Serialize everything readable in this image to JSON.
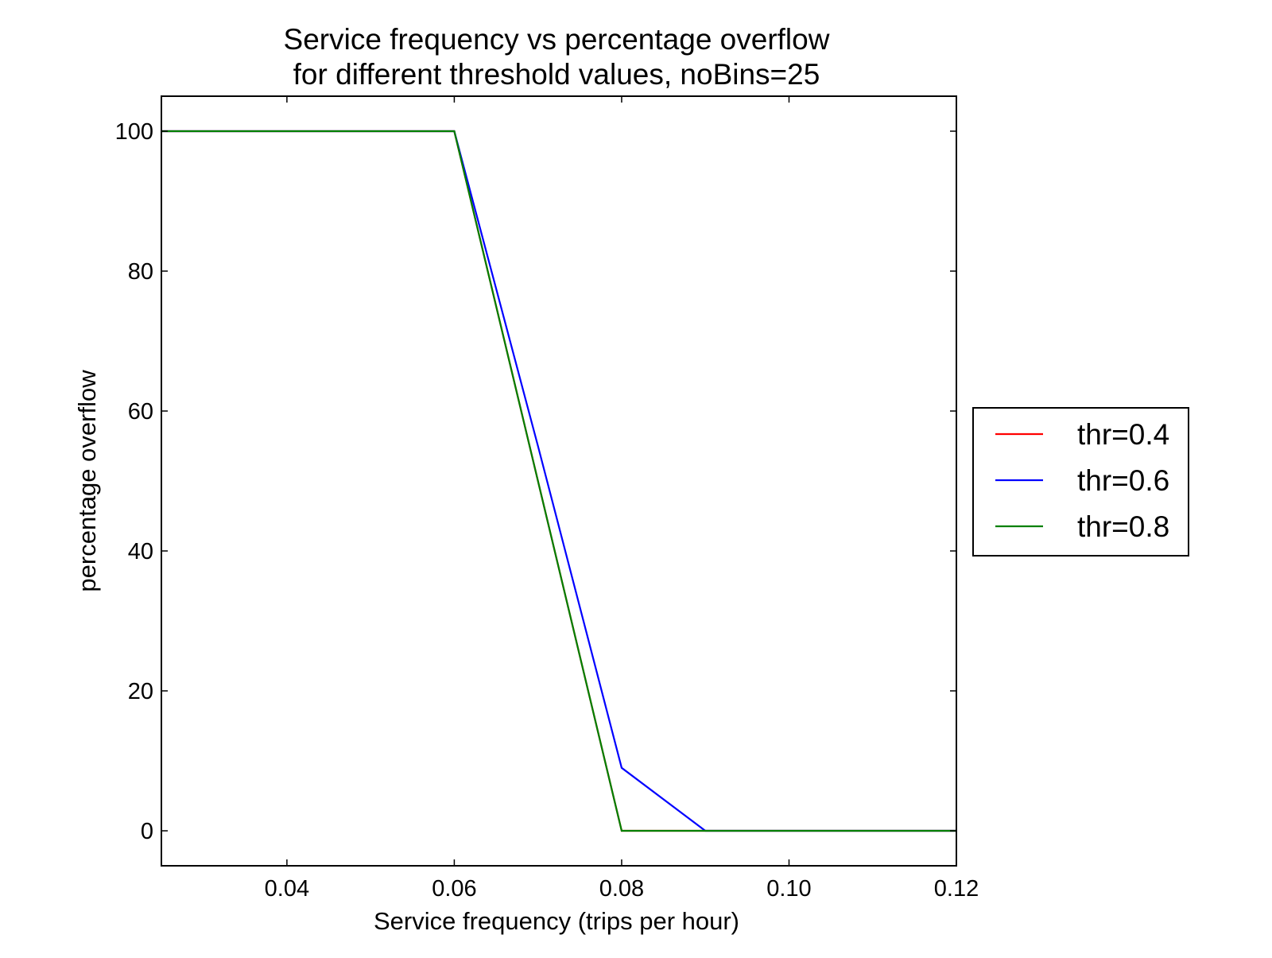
{
  "chart_data": {
    "type": "line",
    "title": "Service frequency vs percentage overflow",
    "subtitle": "for different threshold values, noBins=25",
    "xlabel": "Service frequency (trips per hour)",
    "ylabel": "percentage overflow",
    "xlim": [
      0.025,
      0.12
    ],
    "ylim": [
      -5,
      105
    ],
    "x_ticks": [
      0.04,
      0.06,
      0.08,
      0.1,
      0.12
    ],
    "x_tick_labels": [
      "0.04",
      "0.06",
      "0.08",
      "0.10",
      "0.12"
    ],
    "y_ticks": [
      0,
      20,
      40,
      60,
      80,
      100
    ],
    "y_tick_labels": [
      "0",
      "20",
      "40",
      "60",
      "80",
      "100"
    ],
    "grid": false,
    "legend_position": "outside-right",
    "series": [
      {
        "name": "thr=0.4",
        "color": "#ff0000",
        "x": [
          0.025,
          0.03,
          0.04,
          0.05,
          0.06,
          0.07,
          0.08,
          0.09,
          0.1,
          0.11,
          0.12
        ],
        "y": [
          100,
          100,
          100,
          100,
          100,
          50,
          0,
          0,
          0,
          0,
          0
        ]
      },
      {
        "name": "thr=0.6",
        "color": "#0000ff",
        "x": [
          0.025,
          0.03,
          0.04,
          0.05,
          0.06,
          0.07,
          0.08,
          0.09,
          0.1,
          0.11,
          0.12
        ],
        "y": [
          100,
          100,
          100,
          100,
          100,
          55,
          9,
          0,
          0,
          0,
          0
        ]
      },
      {
        "name": "thr=0.8",
        "color": "#008000",
        "x": [
          0.025,
          0.03,
          0.04,
          0.05,
          0.06,
          0.07,
          0.08,
          0.09,
          0.1,
          0.11,
          0.12
        ],
        "y": [
          100,
          100,
          100,
          100,
          100,
          50,
          0,
          0,
          0,
          0,
          0
        ]
      }
    ]
  }
}
